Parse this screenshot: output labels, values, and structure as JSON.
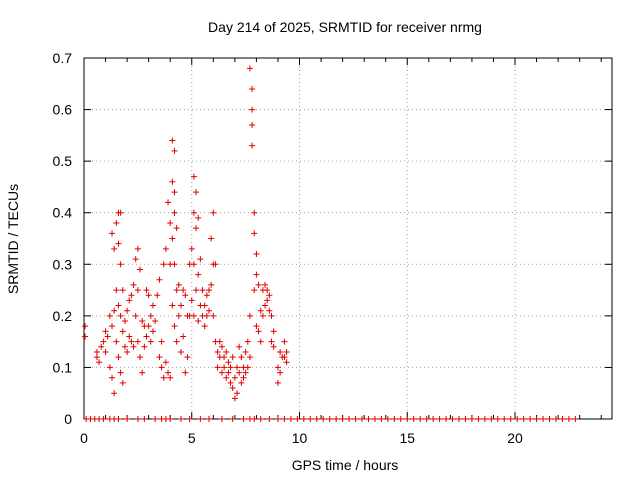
{
  "chart_data": {
    "type": "scatter",
    "title": "Day 214 of 2025, SRMTID for receiver nrmg",
    "xlabel": "GPS time / hours",
    "ylabel": "SRMTID / TECUs",
    "xlim": [
      0,
      24.5
    ],
    "ylim": [
      0,
      0.7
    ],
    "xticks": [
      0,
      5,
      10,
      15,
      20
    ],
    "yticks": [
      0,
      0.1,
      0.2,
      0.3,
      0.4,
      0.5,
      0.6,
      0.7
    ],
    "xtick_labels": [
      "0",
      "5",
      "10",
      "15",
      "20"
    ],
    "ytick_labels": [
      "0",
      "0.1",
      "0.2",
      "0.3",
      "0.4",
      "0.5",
      "0.6",
      "0.7"
    ],
    "grid": true,
    "marker": "+",
    "color": "#e00000",
    "series": [
      {
        "name": "SRMTID",
        "points": [
          [
            0.05,
            0.18
          ],
          [
            0.05,
            0.16
          ],
          [
            0.6,
            0.13
          ],
          [
            0.6,
            0.12
          ],
          [
            0.7,
            0.11
          ],
          [
            0.8,
            0.14
          ],
          [
            0.9,
            0.15
          ],
          [
            1.0,
            0.17
          ],
          [
            1.0,
            0.13
          ],
          [
            1.1,
            0.16
          ],
          [
            1.2,
            0.2
          ],
          [
            1.2,
            0.1
          ],
          [
            1.3,
            0.36
          ],
          [
            1.3,
            0.18
          ],
          [
            1.3,
            0.08
          ],
          [
            1.4,
            0.33
          ],
          [
            1.4,
            0.21
          ],
          [
            1.4,
            0.05
          ],
          [
            1.5,
            0.38
          ],
          [
            1.5,
            0.25
          ],
          [
            1.5,
            0.15
          ],
          [
            1.6,
            0.4
          ],
          [
            1.6,
            0.34
          ],
          [
            1.6,
            0.22
          ],
          [
            1.6,
            0.12
          ],
          [
            1.7,
            0.4
          ],
          [
            1.7,
            0.3
          ],
          [
            1.7,
            0.2
          ],
          [
            1.7,
            0.09
          ],
          [
            1.8,
            0.25
          ],
          [
            1.8,
            0.17
          ],
          [
            1.8,
            0.07
          ],
          [
            1.9,
            0.19
          ],
          [
            1.9,
            0.14
          ],
          [
            2.0,
            0.21
          ],
          [
            2.0,
            0.13
          ],
          [
            2.1,
            0.23
          ],
          [
            2.1,
            0.16
          ],
          [
            2.2,
            0.24
          ],
          [
            2.2,
            0.15
          ],
          [
            2.3,
            0.26
          ],
          [
            2.3,
            0.14
          ],
          [
            2.4,
            0.31
          ],
          [
            2.4,
            0.2
          ],
          [
            2.5,
            0.33
          ],
          [
            2.5,
            0.25
          ],
          [
            2.5,
            0.15
          ],
          [
            2.6,
            0.29
          ],
          [
            2.6,
            0.12
          ],
          [
            2.7,
            0.19
          ],
          [
            2.7,
            0.09
          ],
          [
            2.8,
            0.18
          ],
          [
            2.8,
            0.14
          ],
          [
            2.9,
            0.25
          ],
          [
            2.9,
            0.16
          ],
          [
            3.0,
            0.24
          ],
          [
            3.0,
            0.18
          ],
          [
            3.1,
            0.2
          ],
          [
            3.1,
            0.15
          ],
          [
            3.2,
            0.22
          ],
          [
            3.2,
            0.17
          ],
          [
            3.3,
            0.19
          ],
          [
            3.4,
            0.24
          ],
          [
            3.5,
            0.27
          ],
          [
            3.5,
            0.12
          ],
          [
            3.6,
            0.15
          ],
          [
            3.6,
            0.1
          ],
          [
            3.7,
            0.3
          ],
          [
            3.7,
            0.08
          ],
          [
            3.8,
            0.33
          ],
          [
            3.8,
            0.11
          ],
          [
            3.9,
            0.42
          ],
          [
            3.9,
            0.09
          ],
          [
            4.0,
            0.38
          ],
          [
            4.0,
            0.3
          ],
          [
            4.0,
            0.08
          ],
          [
            4.1,
            0.54
          ],
          [
            4.1,
            0.46
          ],
          [
            4.1,
            0.35
          ],
          [
            4.1,
            0.22
          ],
          [
            4.2,
            0.52
          ],
          [
            4.2,
            0.44
          ],
          [
            4.2,
            0.4
          ],
          [
            4.2,
            0.3
          ],
          [
            4.2,
            0.18
          ],
          [
            4.3,
            0.37
          ],
          [
            4.3,
            0.25
          ],
          [
            4.3,
            0.15
          ],
          [
            4.4,
            0.26
          ],
          [
            4.4,
            0.2
          ],
          [
            4.5,
            0.22
          ],
          [
            4.5,
            0.13
          ],
          [
            4.6,
            0.25
          ],
          [
            4.6,
            0.16
          ],
          [
            4.7,
            0.24
          ],
          [
            4.7,
            0.09
          ],
          [
            4.8,
            0.2
          ],
          [
            4.8,
            0.12
          ],
          [
            4.9,
            0.3
          ],
          [
            4.9,
            0.2
          ],
          [
            5.0,
            0.33
          ],
          [
            5.0,
            0.23
          ],
          [
            5.1,
            0.47
          ],
          [
            5.1,
            0.4
          ],
          [
            5.1,
            0.3
          ],
          [
            5.1,
            0.2
          ],
          [
            5.2,
            0.44
          ],
          [
            5.2,
            0.37
          ],
          [
            5.2,
            0.25
          ],
          [
            5.3,
            0.39
          ],
          [
            5.3,
            0.28
          ],
          [
            5.3,
            0.19
          ],
          [
            5.4,
            0.31
          ],
          [
            5.4,
            0.22
          ],
          [
            5.5,
            0.25
          ],
          [
            5.5,
            0.2
          ],
          [
            5.6,
            0.22
          ],
          [
            5.6,
            0.18
          ],
          [
            5.7,
            0.24
          ],
          [
            5.7,
            0.2
          ],
          [
            5.8,
            0.25
          ],
          [
            5.8,
            0.21
          ],
          [
            5.9,
            0.35
          ],
          [
            5.9,
            0.26
          ],
          [
            6.0,
            0.4
          ],
          [
            6.0,
            0.3
          ],
          [
            6.0,
            0.2
          ],
          [
            6.1,
            0.3
          ],
          [
            6.1,
            0.15
          ],
          [
            6.2,
            0.13
          ],
          [
            6.2,
            0.1
          ],
          [
            6.3,
            0.15
          ],
          [
            6.3,
            0.12
          ],
          [
            6.4,
            0.14
          ],
          [
            6.4,
            0.09
          ],
          [
            6.5,
            0.12
          ],
          [
            6.5,
            0.1
          ],
          [
            6.6,
            0.13
          ],
          [
            6.6,
            0.08
          ],
          [
            6.7,
            0.11
          ],
          [
            6.7,
            0.09
          ],
          [
            6.8,
            0.1
          ],
          [
            6.8,
            0.07
          ],
          [
            6.9,
            0.12
          ],
          [
            6.9,
            0.06
          ],
          [
            7.0,
            0.08
          ],
          [
            7.0,
            0.04
          ],
          [
            7.1,
            0.1
          ],
          [
            7.1,
            0.05
          ],
          [
            7.2,
            0.14
          ],
          [
            7.2,
            0.09
          ],
          [
            7.3,
            0.12
          ],
          [
            7.3,
            0.07
          ],
          [
            7.4,
            0.1
          ],
          [
            7.4,
            0.08
          ],
          [
            7.5,
            0.13
          ],
          [
            7.5,
            0.09
          ],
          [
            7.6,
            0.15
          ],
          [
            7.6,
            0.1
          ],
          [
            7.7,
            0.2
          ],
          [
            7.7,
            0.12
          ],
          [
            7.7,
            0.68
          ],
          [
            7.8,
            0.64
          ],
          [
            7.8,
            0.6
          ],
          [
            7.8,
            0.57
          ],
          [
            7.8,
            0.53
          ],
          [
            7.9,
            0.4
          ],
          [
            7.9,
            0.36
          ],
          [
            7.9,
            0.25
          ],
          [
            8.0,
            0.32
          ],
          [
            8.0,
            0.28
          ],
          [
            8.0,
            0.18
          ],
          [
            8.1,
            0.26
          ],
          [
            8.1,
            0.17
          ],
          [
            8.2,
            0.21
          ],
          [
            8.2,
            0.15
          ],
          [
            8.3,
            0.25
          ],
          [
            8.3,
            0.2
          ],
          [
            8.4,
            0.26
          ],
          [
            8.4,
            0.22
          ],
          [
            8.5,
            0.25
          ],
          [
            8.5,
            0.23
          ],
          [
            8.6,
            0.24
          ],
          [
            8.6,
            0.21
          ],
          [
            8.7,
            0.2
          ],
          [
            8.7,
            0.15
          ],
          [
            8.8,
            0.17
          ],
          [
            8.8,
            0.14
          ],
          [
            9.0,
            0.1
          ],
          [
            9.0,
            0.07
          ],
          [
            9.1,
            0.13
          ],
          [
            9.1,
            0.09
          ],
          [
            9.2,
            0.12
          ],
          [
            9.3,
            0.15
          ],
          [
            9.3,
            0.12
          ],
          [
            9.4,
            0.13
          ],
          [
            9.4,
            0.11
          ]
        ],
        "zero_points_x": [
          0.1,
          0.3,
          0.5,
          0.7,
          0.9,
          1.2,
          1.4,
          1.6,
          2.0,
          2.5,
          2.8,
          3.3,
          3.6,
          3.8,
          4.0,
          4.5,
          4.9,
          5.4,
          5.8,
          6.4,
          6.9,
          7.4,
          7.7,
          7.9,
          8.2,
          8.6,
          9.0,
          9.3,
          9.6,
          9.9,
          10.2,
          10.5,
          10.8,
          11.1,
          11.4,
          11.7,
          12.0,
          12.3,
          12.6,
          12.9,
          13.2,
          13.5,
          13.8,
          14.1,
          14.4,
          14.7,
          15.0,
          15.3,
          15.6,
          15.9,
          16.2,
          16.5,
          16.8,
          17.1,
          17.4,
          17.7,
          18.0,
          18.3,
          18.6,
          18.9,
          19.2,
          19.5,
          19.8,
          20.1,
          20.4,
          20.7,
          21.0,
          21.3,
          21.6,
          21.9,
          22.2,
          22.5,
          22.8
        ]
      }
    ]
  }
}
